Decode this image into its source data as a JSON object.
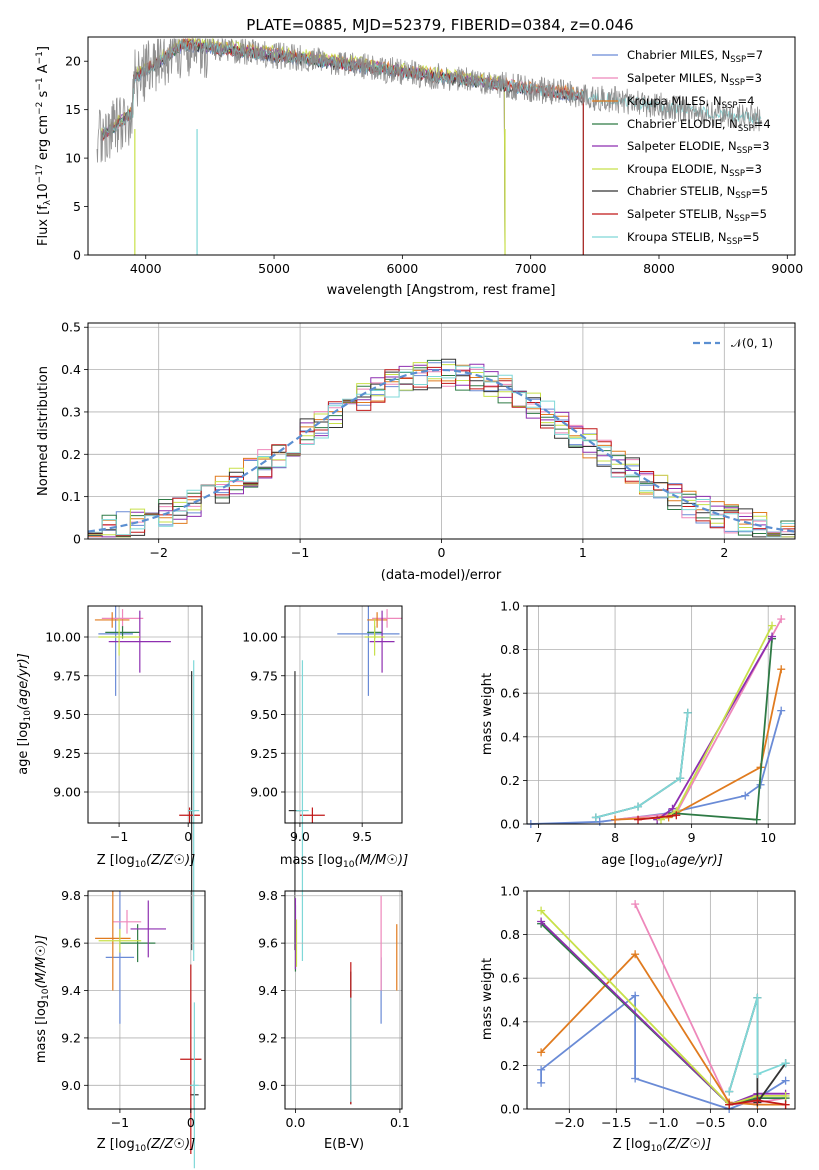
{
  "chart_data": [
    {
      "type": "line",
      "panel": "spectrum",
      "title": "PLATE=0885, MJD=52379, FIBERID=0384, z=0.046",
      "xlabel": "wavelength [Angstrom, rest frame]",
      "ylabel": "Flux [f_λ 10^-17 erg cm^-2 s^-1 A^-1]",
      "ylabel_parts": {
        "a": "Flux [f",
        "b": "λ",
        "c": "10",
        "d": "−17",
        "e": " erg cm",
        "f": "−2",
        "g": " s",
        "h": "−1",
        "i": " A",
        "j": "−1",
        "k": "]"
      },
      "xlim": [
        3550,
        9060
      ],
      "ylim": [
        0,
        22.5
      ],
      "xticks": [
        4000,
        5000,
        6000,
        7000,
        8000,
        9000
      ],
      "yticks": [
        0,
        5,
        10,
        15,
        20
      ],
      "grid": false,
      "legend_placement": "top-right",
      "series": [
        {
          "name": "Chabrier MILES, N_SSP=7",
          "label_main": "Chabrier MILES, N",
          "label_sub": "SSP",
          "label_end": "=7",
          "color": "#6a8bd6",
          "x_range": [
            3650,
            7410
          ],
          "level": 13.9
        },
        {
          "name": "Salpeter MILES, N_SSP=3",
          "label_main": "Salpeter MILES, N",
          "label_sub": "SSP",
          "label_end": "=3",
          "color": "#ee88bb",
          "x_range": [
            3650,
            7410
          ],
          "level": 14.1
        },
        {
          "name": "Kroupa MILES, N_SSP=4",
          "label_main": "Kroupa MILES, N",
          "label_sub": "SSP",
          "label_end": "=4",
          "color": "#e07b1f",
          "x_range": [
            3650,
            7410
          ],
          "level": 14.2
        },
        {
          "name": "Chabrier ELODIE, N_SSP=4",
          "label_main": "Chabrier ELODIE, N",
          "label_sub": "SSP",
          "label_end": "=4",
          "color": "#2e7a45",
          "x_range": [
            3650,
            6800
          ],
          "level": 14.0
        },
        {
          "name": "Salpeter ELODIE, N_SSP=3",
          "label_main": "Salpeter ELODIE, N",
          "label_sub": "SSP",
          "label_end": "=3",
          "color": "#8e2fb0",
          "x_range": [
            3650,
            6800
          ],
          "level": 14.1
        },
        {
          "name": "Kroupa ELODIE, N_SSP=3",
          "label_main": "Kroupa ELODIE, N",
          "label_sub": "SSP",
          "label_end": "=3",
          "color": "#c8e04a",
          "x_range": [
            3650,
            6800
          ],
          "level": 14.3
        },
        {
          "name": "Chabrier STELIB, N_SSP=5",
          "label_main": "Chabrier STELIB, N",
          "label_sub": "SSP",
          "label_end": "=5",
          "color": "#333333",
          "x_range": [
            3650,
            7410
          ],
          "level": 13.9
        },
        {
          "name": "Salpeter STELIB, N_SSP=5",
          "label_main": "Salpeter STELIB, N",
          "label_sub": "SSP",
          "label_end": "=5",
          "color": "#c01818",
          "x_range": [
            3650,
            7410
          ],
          "level": 14.0
        },
        {
          "name": "Kroupa STELIB, N_SSP=5",
          "label_main": "Kroupa STELIB, N",
          "label_sub": "SSP",
          "label_end": "=5",
          "color": "#7fd8d8",
          "x_range": [
            3650,
            8800
          ],
          "level": 14.0
        },
        {
          "name": "data",
          "color": "#8a8a8a",
          "x_range": [
            3620,
            8800
          ],
          "level": 14.0
        }
      ]
    },
    {
      "type": "line",
      "panel": "residuals",
      "xlabel": "(data-model)/error",
      "ylabel": "Normed distribution",
      "xlim": [
        -2.5,
        2.5
      ],
      "ylim": [
        0,
        0.51
      ],
      "xticks": [
        -2,
        -1,
        0,
        1,
        2
      ],
      "xticklabels": [
        "−2",
        "−1",
        "0",
        "1",
        "2"
      ],
      "yticks": [
        0.0,
        0.1,
        0.2,
        0.3,
        0.4,
        0.5
      ],
      "grid": true,
      "legend_placement": "top-right",
      "legend": [
        {
          "name": "𝒩(0, 1)",
          "color": "#5b8fd1",
          "dashed": true
        }
      ],
      "step_series_colors": [
        "#6a8bd6",
        "#ee88bb",
        "#e07b1f",
        "#2e7a45",
        "#8e2fb0",
        "#c8e04a",
        "#333333",
        "#c01818",
        "#7fd8d8"
      ],
      "bin_width": 0.1
    },
    {
      "type": "scatter",
      "panel": "age-vs-Z",
      "xlabel_main": "Z [log",
      "xlabel_sub": "10",
      "xlabel_end": "(Z/Z☉)]",
      "ylabel_main": "age  [log",
      "ylabel_sub": "10",
      "ylabel_end": "(age/yr)]",
      "xlim": [
        -1.45,
        0.2
      ],
      "ylim": [
        8.8,
        10.2
      ],
      "xticks": [
        -1,
        0
      ],
      "xticklabels": [
        "−1",
        "0"
      ],
      "yticks": [
        9.0,
        9.25,
        9.5,
        9.75,
        10.0
      ],
      "yticklabels": [
        "9.00",
        "9.25",
        "9.50",
        "9.75",
        "10.00"
      ],
      "grid": true,
      "points": [
        {
          "x": -1.05,
          "y": 10.02,
          "xerr": 0.25,
          "yerr": 0.4,
          "color": "#6a8bd6"
        },
        {
          "x": -0.95,
          "y": 10.12,
          "xerr": 0.3,
          "yerr": 0.06,
          "color": "#ee88bb"
        },
        {
          "x": -1.1,
          "y": 10.11,
          "xerr": 0.25,
          "yerr": 0.05,
          "color": "#e07b1f"
        },
        {
          "x": -0.95,
          "y": 10.03,
          "xerr": 0.25,
          "yerr": 0.04,
          "color": "#2e7a45"
        },
        {
          "x": -0.7,
          "y": 9.97,
          "xerr": 0.45,
          "yerr": 0.2,
          "color": "#8e2fb0"
        },
        {
          "x": -1.0,
          "y": 10.0,
          "xerr": 0.3,
          "yerr": 0.12,
          "color": "#c8e04a"
        },
        {
          "x": 0.05,
          "y": 8.88,
          "xerr": 0.05,
          "yerr": 0.9,
          "color": "#333333"
        },
        {
          "x": 0.02,
          "y": 8.85,
          "xerr": 0.15,
          "yerr": 0.05,
          "color": "#c01818"
        },
        {
          "x": 0.08,
          "y": 8.88,
          "xerr": 0.08,
          "yerr": 0.97,
          "color": "#7fd8d8"
        }
      ]
    },
    {
      "type": "scatter",
      "panel": "age-vs-mass",
      "xlabel_main": "mass [log",
      "xlabel_sub": "10",
      "xlabel_end": "(M/M☉)]",
      "xlim": [
        8.88,
        9.82
      ],
      "ylim": [
        8.8,
        10.2
      ],
      "xticks": [
        9.0,
        9.5
      ],
      "xticklabels": [
        "9.0",
        "9.5"
      ],
      "yticks": [
        9.0,
        9.25,
        9.5,
        9.75,
        10.0
      ],
      "yticklabels": [
        "9.00",
        "9.25",
        "9.50",
        "9.75",
        "10.00"
      ],
      "grid": true,
      "points": [
        {
          "x": 9.55,
          "y": 10.02,
          "xerr": 0.25,
          "yerr": 0.4,
          "color": "#6a8bd6"
        },
        {
          "x": 9.7,
          "y": 10.12,
          "xerr": 0.12,
          "yerr": 0.06,
          "color": "#ee88bb"
        },
        {
          "x": 9.62,
          "y": 10.11,
          "xerr": 0.08,
          "yerr": 0.05,
          "color": "#e07b1f"
        },
        {
          "x": 9.6,
          "y": 10.03,
          "xerr": 0.06,
          "yerr": 0.04,
          "color": "#2e7a45"
        },
        {
          "x": 9.66,
          "y": 9.97,
          "xerr": 0.1,
          "yerr": 0.2,
          "color": "#8e2fb0"
        },
        {
          "x": 9.6,
          "y": 10.0,
          "xerr": 0.08,
          "yerr": 0.12,
          "color": "#c8e04a"
        },
        {
          "x": 8.96,
          "y": 8.88,
          "xerr": 0.05,
          "yerr": 0.9,
          "color": "#333333"
        },
        {
          "x": 9.1,
          "y": 8.85,
          "xerr": 0.1,
          "yerr": 0.05,
          "color": "#c01818"
        },
        {
          "x": 9.02,
          "y": 8.88,
          "xerr": 0.05,
          "yerr": 0.97,
          "color": "#7fd8d8"
        }
      ]
    },
    {
      "type": "line",
      "panel": "weight-vs-age",
      "xlabel_main": "age  [log",
      "xlabel_sub": "10",
      "xlabel_end": "(age/yr)]",
      "ylabel": "mass weight",
      "xlim": [
        6.85,
        10.35
      ],
      "ylim": [
        0,
        1
      ],
      "xticks": [
        7,
        8,
        9,
        10
      ],
      "xticklabels": [
        "7",
        "8",
        "9",
        "10"
      ],
      "yticks": [
        0,
        0.2,
        0.4,
        0.6,
        0.8,
        1.0
      ],
      "yticklabels": [
        "0.0",
        "0.2",
        "0.4",
        "0.6",
        "0.8",
        "1.0"
      ],
      "grid": true,
      "series": [
        {
          "color": "#6a8bd6",
          "x": [
            6.9,
            7.8,
            8.7,
            9.7,
            9.9,
            10.17
          ],
          "y": [
            0.0,
            0.01,
            0.05,
            0.13,
            0.18,
            0.52
          ]
        },
        {
          "color": "#ee88bb",
          "x": [
            8.0,
            8.8,
            10.17
          ],
          "y": [
            0.02,
            0.05,
            0.94
          ]
        },
        {
          "color": "#e07b1f",
          "x": [
            8.0,
            8.7,
            9.9,
            10.17
          ],
          "y": [
            0.02,
            0.03,
            0.26,
            0.71
          ]
        },
        {
          "color": "#2e7a45",
          "x": [
            8.75,
            9.85,
            10.05
          ],
          "y": [
            0.05,
            0.02,
            0.85
          ]
        },
        {
          "color": "#8e2fb0",
          "x": [
            8.55,
            8.75,
            10.05
          ],
          "y": [
            0.02,
            0.07,
            0.86
          ]
        },
        {
          "color": "#c8e04a",
          "x": [
            8.6,
            8.8,
            10.05
          ],
          "y": [
            0.02,
            0.06,
            0.91
          ]
        },
        {
          "color": "#333333",
          "x": [
            7.75,
            8.3,
            8.85,
            8.95
          ],
          "y": [
            0.03,
            0.08,
            0.21,
            0.51
          ]
        },
        {
          "color": "#c01818",
          "x": [
            8.3,
            8.8
          ],
          "y": [
            0.02,
            0.04
          ]
        },
        {
          "color": "#7fd8d8",
          "x": [
            7.75,
            8.3,
            8.85,
            8.95
          ],
          "y": [
            0.03,
            0.08,
            0.21,
            0.51
          ]
        }
      ]
    },
    {
      "type": "scatter",
      "panel": "mass-vs-Z",
      "xlabel_main": "Z [log",
      "xlabel_sub": "10",
      "xlabel_end": "(Z/Z☉)]",
      "ylabel_main": "mass [log",
      "ylabel_sub": "10",
      "ylabel_end": "(M/M☉)]",
      "xlim": [
        -1.45,
        0.2
      ],
      "ylim": [
        8.9,
        9.82
      ],
      "xticks": [
        -1,
        0
      ],
      "xticklabels": [
        "−1",
        "0"
      ],
      "yticks": [
        9.0,
        9.2,
        9.4,
        9.6,
        9.8
      ],
      "yticklabels": [
        "9.0",
        "9.2",
        "9.4",
        "9.6",
        "9.8"
      ],
      "grid": true,
      "points": [
        {
          "x": -1.0,
          "y": 9.54,
          "xerr": 0.2,
          "yerr": 0.28,
          "color": "#6a8bd6"
        },
        {
          "x": -0.9,
          "y": 9.69,
          "xerr": 0.2,
          "yerr": 0.05,
          "color": "#ee88bb"
        },
        {
          "x": -1.1,
          "y": 9.62,
          "xerr": 0.25,
          "yerr": 0.22,
          "color": "#e07b1f"
        },
        {
          "x": -0.75,
          "y": 9.6,
          "xerr": 0.25,
          "yerr": 0.08,
          "color": "#2e7a45"
        },
        {
          "x": -0.6,
          "y": 9.66,
          "xerr": 0.25,
          "yerr": 0.12,
          "color": "#8e2fb0"
        },
        {
          "x": -1.0,
          "y": 9.61,
          "xerr": 0.3,
          "yerr": 0.05,
          "color": "#c8e04a"
        },
        {
          "x": 0.05,
          "y": 8.96,
          "xerr": 0.06,
          "yerr": 0.06,
          "color": "#333333"
        },
        {
          "x": 0.0,
          "y": 9.11,
          "xerr": 0.15,
          "yerr": 0.4,
          "color": "#c01818"
        },
        {
          "x": 0.05,
          "y": 9.0,
          "xerr": 0.06,
          "yerr": 0.35,
          "color": "#7fd8d8"
        }
      ]
    },
    {
      "type": "scatter",
      "panel": "mass-vs-EBV",
      "xlabel": "E(B-V)",
      "xlim": [
        -0.01,
        0.102
      ],
      "ylim": [
        8.9,
        9.82
      ],
      "xticks": [
        0.0,
        0.1
      ],
      "xticklabels": [
        "0.0",
        "0.1"
      ],
      "yticks": [
        9.0,
        9.2,
        9.4,
        9.6,
        9.8
      ],
      "yticklabels": [
        "9.0",
        "9.2",
        "9.4",
        "9.6",
        "9.8"
      ],
      "grid": true,
      "points": [
        {
          "x": 0.082,
          "y": 9.4,
          "yerr": 0.14,
          "color": "#6a8bd6"
        },
        {
          "x": 0.082,
          "y": 9.6,
          "yerr": 0.2,
          "color": "#ee88bb"
        },
        {
          "x": 0.097,
          "y": 9.54,
          "yerr": 0.14,
          "color": "#e07b1f"
        },
        {
          "x": 0.0,
          "y": 9.62,
          "yerr": 0.14,
          "color": "#2e7a45"
        },
        {
          "x": 0.0,
          "y": 9.64,
          "yerr": 0.15,
          "color": "#8e2fb0"
        },
        {
          "x": 0.001,
          "y": 9.6,
          "yerr": 0.1,
          "color": "#c8e04a"
        },
        {
          "x": 0.053,
          "y": 9.2,
          "yerr": 0.28,
          "color": "#333333"
        },
        {
          "x": 0.053,
          "y": 9.22,
          "yerr": 0.3,
          "color": "#c01818"
        },
        {
          "x": 0.053,
          "y": 9.15,
          "yerr": 0.22,
          "color": "#7fd8d8"
        }
      ]
    },
    {
      "type": "line",
      "panel": "weight-vs-Z",
      "xlabel_main": "Z [log",
      "xlabel_sub": "10",
      "xlabel_end": "(Z/Z☉)]",
      "ylabel": "mass weight",
      "xlim": [
        -2.45,
        0.4
      ],
      "ylim": [
        0,
        1
      ],
      "xticks": [
        -2.0,
        -1.5,
        -1.0,
        -0.5,
        0.0
      ],
      "xticklabels": [
        "−2.0",
        "−1.5",
        "−1.0",
        "−0.5",
        "0.0"
      ],
      "yticks": [
        0,
        0.2,
        0.4,
        0.6,
        0.8,
        1.0
      ],
      "yticklabels": [
        "0.0",
        "0.2",
        "0.4",
        "0.6",
        "0.8",
        "1.0"
      ],
      "grid": true,
      "series": [
        {
          "color": "#6a8bd6",
          "x": [
            -2.3,
            -2.3,
            -1.3,
            -1.3,
            -0.3,
            0.0,
            0.3
          ],
          "y": [
            0.12,
            0.18,
            0.52,
            0.14,
            0.0,
            0.05,
            0.13
          ]
        },
        {
          "color": "#ee88bb",
          "x": [
            -1.3,
            -0.3,
            0.0,
            0.3
          ],
          "y": [
            0.94,
            0.02,
            0.03,
            0.05
          ]
        },
        {
          "color": "#e07b1f",
          "x": [
            -2.3,
            -1.3,
            -0.3,
            0.0,
            0.3
          ],
          "y": [
            0.26,
            0.71,
            0.03,
            0.02,
            0.02
          ]
        },
        {
          "color": "#2e7a45",
          "x": [
            -2.3,
            -0.3,
            0.0,
            0.3
          ],
          "y": [
            0.85,
            0.02,
            0.05,
            0.05
          ]
        },
        {
          "color": "#8e2fb0",
          "x": [
            -2.3,
            -0.3,
            0.0,
            0.3
          ],
          "y": [
            0.86,
            0.02,
            0.07,
            0.07
          ]
        },
        {
          "color": "#c8e04a",
          "x": [
            -2.3,
            -0.3,
            0.0,
            0.3
          ],
          "y": [
            0.91,
            0.02,
            0.06,
            0.06
          ]
        },
        {
          "color": "#333333",
          "x": [
            -0.3,
            0.0,
            0.0,
            0.3
          ],
          "y": [
            0.08,
            0.51,
            0.03,
            0.21
          ]
        },
        {
          "color": "#c01818",
          "x": [
            -0.3,
            0.0,
            0.3
          ],
          "y": [
            0.02,
            0.04,
            0.02
          ]
        },
        {
          "color": "#7fd8d8",
          "x": [
            -0.3,
            0.0,
            0.0,
            0.3
          ],
          "y": [
            0.08,
            0.51,
            0.16,
            0.21
          ]
        }
      ]
    }
  ]
}
